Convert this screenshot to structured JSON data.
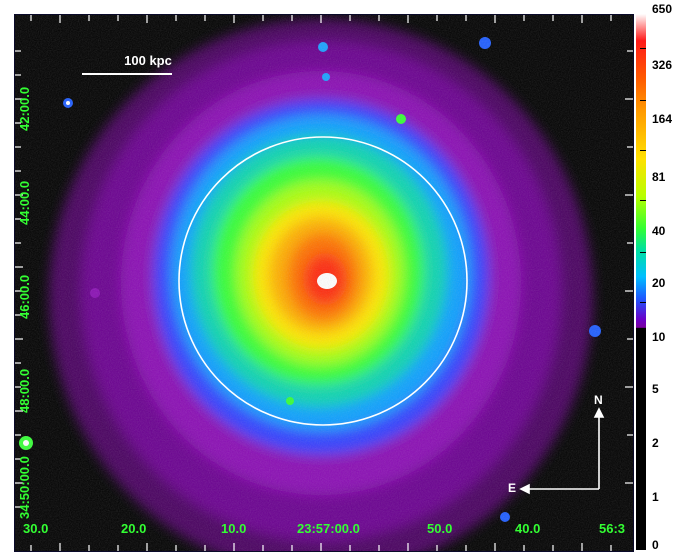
{
  "image": {
    "scale_bar_label": "100 kpc",
    "dec_labels": [
      "42:00.0",
      "44:00.0",
      "46:00.0",
      "48:00.0",
      "34:50:00.0"
    ],
    "ra_labels": [
      "30.0",
      "20.0",
      "10.0",
      "23:57:00.0",
      "50.0",
      "40.0",
      "56:3"
    ],
    "compass": {
      "north": "N",
      "east": "E"
    }
  },
  "colorbar": {
    "labels": [
      "650",
      "326",
      "164",
      "81",
      "40",
      "20",
      "10",
      "5",
      "2",
      "1",
      "0"
    ]
  },
  "colors": {
    "label_green": "#33ff33",
    "overlay_white": "#ffffff"
  }
}
